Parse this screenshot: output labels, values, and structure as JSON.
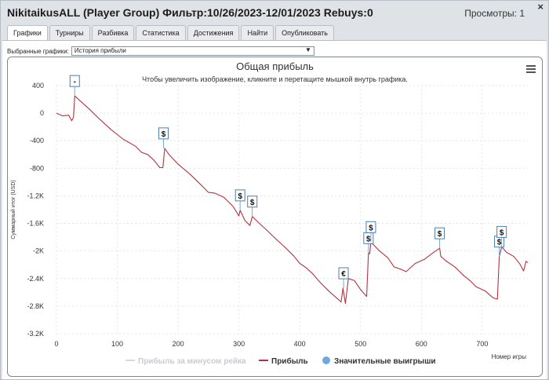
{
  "window": {
    "title": "NikitaikusALL (Player Group) Фильтр:10/26/2023-12/01/2023 Rebuys:0",
    "views": "Просмотры: 1",
    "close": "×"
  },
  "tabs": [
    {
      "label": "Графики",
      "active": true
    },
    {
      "label": "Турниры",
      "active": false
    },
    {
      "label": "Разбивка",
      "active": false
    },
    {
      "label": "Статистика",
      "active": false
    },
    {
      "label": "Достижения",
      "active": false
    },
    {
      "label": "Найти",
      "active": false
    },
    {
      "label": "Опубликовать",
      "active": false
    }
  ],
  "selector": {
    "label": "Выбранные графики:",
    "value": "История прибыли",
    "arrow": "▼"
  },
  "chart": {
    "title": "Общая прибыль",
    "subtitle": "Чтобы увеличить изображение, кликните и перетащите мышкой внутрь графика.",
    "menu_icon": "hamburger-menu-icon"
  },
  "chart_data": {
    "type": "line",
    "title": "Общая прибыль",
    "subtitle": "Чтобы увеличить изображение, кликните и перетащите мышкой внутрь графика.",
    "xlabel": "Номер игры",
    "ylabel": "Суммарный итог (USD)",
    "xlim": [
      0,
      775
    ],
    "ylim": [
      -3200,
      400
    ],
    "x_ticks": [
      "0",
      "100",
      "200",
      "300",
      "400",
      "500",
      "600",
      "700"
    ],
    "y_ticks": [
      "400",
      "0",
      "-400",
      "-800",
      "-1.2K",
      "-1.6K",
      "-2K",
      "-2.4K",
      "-2.8K",
      "-3.2K"
    ],
    "grid": true,
    "series": [
      {
        "name": "Прибыль",
        "color": "#b5333f",
        "points": [
          [
            0,
            0
          ],
          [
            10,
            -40
          ],
          [
            20,
            -30
          ],
          [
            25,
            -110
          ],
          [
            28,
            -60
          ],
          [
            30,
            250
          ],
          [
            40,
            170
          ],
          [
            55,
            50
          ],
          [
            70,
            -80
          ],
          [
            90,
            -240
          ],
          [
            110,
            -380
          ],
          [
            130,
            -480
          ],
          [
            140,
            -570
          ],
          [
            150,
            -600
          ],
          [
            160,
            -680
          ],
          [
            170,
            -790
          ],
          [
            175,
            -790
          ],
          [
            178,
            -510
          ],
          [
            185,
            -600
          ],
          [
            200,
            -740
          ],
          [
            220,
            -890
          ],
          [
            240,
            -1060
          ],
          [
            250,
            -1150
          ],
          [
            260,
            -1160
          ],
          [
            275,
            -1220
          ],
          [
            290,
            -1350
          ],
          [
            300,
            -1490
          ],
          [
            302,
            -1410
          ],
          [
            310,
            -1560
          ],
          [
            318,
            -1630
          ],
          [
            322,
            -1500
          ],
          [
            330,
            -1570
          ],
          [
            345,
            -1690
          ],
          [
            360,
            -1820
          ],
          [
            375,
            -1940
          ],
          [
            390,
            -2070
          ],
          [
            400,
            -2180
          ],
          [
            410,
            -2240
          ],
          [
            420,
            -2320
          ],
          [
            435,
            -2470
          ],
          [
            450,
            -2600
          ],
          [
            468,
            -2740
          ],
          [
            471,
            -2540
          ],
          [
            475,
            -2760
          ],
          [
            480,
            -2400
          ],
          [
            490,
            -2430
          ],
          [
            500,
            -2560
          ],
          [
            510,
            -2660
          ],
          [
            513,
            -2030
          ],
          [
            515,
            -2040
          ],
          [
            517,
            -1870
          ],
          [
            530,
            -1990
          ],
          [
            545,
            -2100
          ],
          [
            555,
            -2230
          ],
          [
            565,
            -2260
          ],
          [
            575,
            -2300
          ],
          [
            590,
            -2180
          ],
          [
            605,
            -2120
          ],
          [
            620,
            -2020
          ],
          [
            630,
            -1960
          ],
          [
            632,
            -2080
          ],
          [
            640,
            -2140
          ],
          [
            655,
            -2230
          ],
          [
            670,
            -2360
          ],
          [
            680,
            -2430
          ],
          [
            690,
            -2520
          ],
          [
            705,
            -2580
          ],
          [
            718,
            -2680
          ],
          [
            725,
            -2700
          ],
          [
            728,
            -2080
          ],
          [
            732,
            -1940
          ],
          [
            740,
            -2020
          ],
          [
            752,
            -2080
          ],
          [
            762,
            -2190
          ],
          [
            768,
            -2290
          ],
          [
            772,
            -2150
          ],
          [
            775,
            -2170
          ]
        ]
      },
      {
        "name": "Прибыль за минусом рейка",
        "color": "#d6d9dd",
        "points": []
      }
    ],
    "significant_wins": [
      {
        "x": 30,
        "y": 250,
        "symbol": "-"
      },
      {
        "x": 176,
        "y": -510,
        "symbol": "$"
      },
      {
        "x": 302,
        "y": -1410,
        "symbol": "$"
      },
      {
        "x": 322,
        "y": -1500,
        "symbol": "$"
      },
      {
        "x": 472,
        "y": -2540,
        "symbol": "€"
      },
      {
        "x": 513,
        "y": -2030,
        "symbol": "$"
      },
      {
        "x": 517,
        "y": -1870,
        "symbol": "$"
      },
      {
        "x": 630,
        "y": -1960,
        "symbol": "$"
      },
      {
        "x": 728,
        "y": -2080,
        "symbol": "$"
      },
      {
        "x": 732,
        "y": -1940,
        "symbol": "$"
      }
    ],
    "legend": [
      {
        "label": "Прибыль за минусом рейка",
        "kind": "line",
        "color": "#d6d9dd"
      },
      {
        "label": "Прибыль",
        "kind": "line",
        "color": "#b5333f"
      },
      {
        "label": "Значительные выигрыши",
        "kind": "dot",
        "color": "#6fa8dc"
      }
    ],
    "legend_position": "bottom"
  }
}
